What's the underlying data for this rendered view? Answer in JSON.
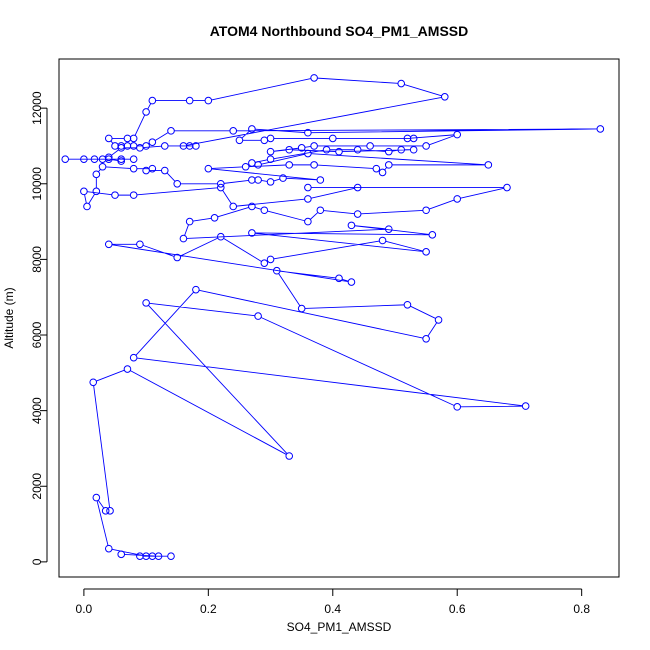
{
  "chart_data": {
    "type": "line",
    "title": "ATOM4 Northbound SO4_PM1_AMSSD",
    "xlabel": "SO4_PM1_AMSSD",
    "ylabel": "Altitude (m)",
    "xlim": [
      -0.04,
      0.86
    ],
    "ylim": [
      -400,
      13300
    ],
    "x_ticks": [
      "0.0",
      "0.2",
      "0.4",
      "0.6",
      "0.8"
    ],
    "x_tick_values": [
      0,
      0.2,
      0.4,
      0.6,
      0.8
    ],
    "y_ticks": [
      "0",
      "2000",
      "4000",
      "6000",
      "8000",
      "10000",
      "12000"
    ],
    "y_tick_values": [
      0,
      2000,
      4000,
      6000,
      8000,
      10000,
      12000
    ],
    "grid": false,
    "marker": "open-circle",
    "color": "#0000ff",
    "series": [
      {
        "points": [
          [
            0.06,
            200
          ],
          [
            0.12,
            150
          ],
          [
            0.11,
            150
          ],
          [
            0.14,
            150
          ],
          [
            0.09,
            150
          ],
          [
            0.1,
            150
          ],
          [
            0.04,
            350
          ],
          [
            0.02,
            1700
          ],
          [
            0.035,
            1350
          ],
          [
            0.042,
            1350
          ],
          [
            0.015,
            4750
          ],
          [
            0.07,
            5100
          ],
          [
            0.33,
            2800
          ],
          [
            0.1,
            6850
          ],
          [
            0.28,
            6500
          ],
          [
            0.6,
            4100
          ],
          [
            0.71,
            4120
          ],
          [
            0.08,
            5400
          ],
          [
            0.18,
            7200
          ],
          [
            0.55,
            5900
          ],
          [
            0.57,
            6400
          ],
          [
            0.52,
            6800
          ],
          [
            0.35,
            6700
          ],
          [
            0.31,
            7700
          ],
          [
            0.41,
            7500
          ],
          [
            0.43,
            7400
          ],
          [
            0.04,
            8400
          ],
          [
            0.09,
            8400
          ],
          [
            0.15,
            8050
          ],
          [
            0.22,
            8600
          ],
          [
            0.29,
            7900
          ],
          [
            0.3,
            8000
          ],
          [
            0.48,
            8500
          ],
          [
            0.55,
            8200
          ],
          [
            0.27,
            8700
          ],
          [
            0.56,
            8650
          ],
          [
            0.43,
            8900
          ],
          [
            0.49,
            8800
          ],
          [
            0.16,
            8550
          ],
          [
            0.17,
            9000
          ],
          [
            0.21,
            9100
          ],
          [
            0.27,
            9400
          ],
          [
            0.29,
            9300
          ],
          [
            0.36,
            9000
          ],
          [
            0.38,
            9300
          ],
          [
            0.44,
            9200
          ],
          [
            0.55,
            9300
          ],
          [
            0.6,
            9600
          ],
          [
            0.68,
            9900
          ],
          [
            0.36,
            9900
          ],
          [
            0.44,
            9900
          ],
          [
            0.36,
            9600
          ],
          [
            0.24,
            9400
          ],
          [
            0.22,
            9900
          ],
          [
            0.08,
            9700
          ],
          [
            0.05,
            9700
          ],
          [
            0.0,
            9800
          ],
          [
            0.005,
            9400
          ],
          [
            0.02,
            9800
          ],
          [
            0.02,
            10250
          ],
          [
            0.03,
            10450
          ],
          [
            0.08,
            10400
          ],
          [
            0.11,
            10400
          ],
          [
            0.1,
            10350
          ],
          [
            0.13,
            10350
          ],
          [
            0.15,
            10000
          ],
          [
            0.22,
            10000
          ],
          [
            0.27,
            10100
          ],
          [
            0.28,
            10100
          ],
          [
            0.3,
            10050
          ],
          [
            0.32,
            10150
          ],
          [
            0.38,
            10100
          ],
          [
            0.2,
            10400
          ],
          [
            0.26,
            10450
          ],
          [
            0.33,
            10500
          ],
          [
            0.37,
            10500
          ],
          [
            0.47,
            10400
          ],
          [
            0.48,
            10300
          ],
          [
            0.49,
            10500
          ],
          [
            0.65,
            10500
          ],
          [
            0.36,
            10800
          ],
          [
            0.28,
            10500
          ],
          [
            0.27,
            10550
          ],
          [
            0.3,
            10650
          ],
          [
            0.39,
            10900
          ],
          [
            0.44,
            10900
          ],
          [
            0.49,
            10850
          ],
          [
            0.51,
            10900
          ],
          [
            0.53,
            10900
          ],
          [
            0.41,
            10850
          ],
          [
            0.33,
            10900
          ],
          [
            0.3,
            10850
          ],
          [
            0.35,
            10950
          ],
          [
            0.37,
            11000
          ],
          [
            0.46,
            11000
          ],
          [
            0.55,
            11000
          ],
          [
            0.6,
            11300
          ],
          [
            0.52,
            11200
          ],
          [
            0.53,
            11200
          ],
          [
            0.4,
            11200
          ],
          [
            0.3,
            11200
          ],
          [
            0.29,
            11150
          ],
          [
            0.25,
            11150
          ],
          [
            0.27,
            11450
          ],
          [
            0.36,
            11350
          ],
          [
            0.83,
            11450
          ],
          [
            0.24,
            11400
          ],
          [
            0.14,
            11400
          ],
          [
            0.11,
            11100
          ],
          [
            0.1,
            11000
          ],
          [
            0.08,
            11000
          ],
          [
            0.07,
            11000
          ],
          [
            0.06,
            11000
          ],
          [
            0.05,
            11000
          ],
          [
            0.04,
            11200
          ],
          [
            0.07,
            11200
          ],
          [
            0.08,
            11200
          ],
          [
            0.1,
            11900
          ],
          [
            0.11,
            12200
          ],
          [
            0.17,
            12200
          ],
          [
            0.2,
            12200
          ],
          [
            0.37,
            12800
          ],
          [
            0.51,
            12650
          ],
          [
            0.58,
            12300
          ],
          [
            0.16,
            11000
          ],
          [
            0.17,
            11000
          ],
          [
            0.18,
            11000
          ],
          [
            0.13,
            11000
          ],
          [
            0.09,
            10950
          ],
          [
            0.06,
            10950
          ],
          [
            0.04,
            10700
          ],
          [
            0.03,
            10650
          ],
          [
            0.04,
            10650
          ],
          [
            0.06,
            10600
          ],
          [
            0.06,
            10650
          ],
          [
            0.08,
            10650
          ],
          [
            -0.03,
            10650
          ],
          [
            0.0,
            10650
          ],
          [
            0.017,
            10650
          ]
        ]
      }
    ]
  }
}
